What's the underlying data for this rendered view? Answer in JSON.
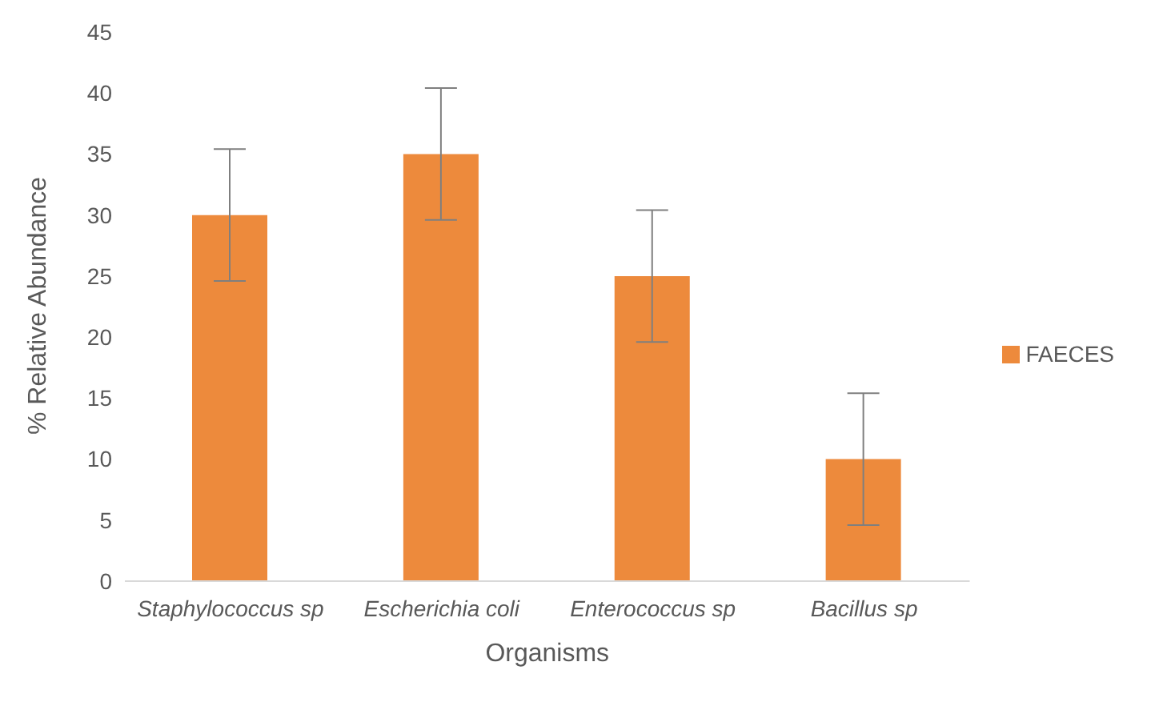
{
  "chart_data": {
    "type": "bar",
    "xlabel": "Organisms",
    "ylabel": "% Relative Abundance",
    "categories": [
      "Staphylococcus sp",
      "Escherichia coli",
      "Enterococcus sp",
      "Bacillus sp"
    ],
    "series": [
      {
        "name": "FAECES",
        "color": "#ed8a3c",
        "values": [
          30,
          35,
          25,
          10
        ],
        "errors": [
          5.4,
          5.4,
          5.4,
          5.4
        ]
      }
    ],
    "ylim": [
      0,
      45
    ],
    "yticks": [
      0,
      5,
      10,
      15,
      20,
      25,
      30,
      35,
      40,
      45
    ],
    "grid": false,
    "legend": "right"
  }
}
